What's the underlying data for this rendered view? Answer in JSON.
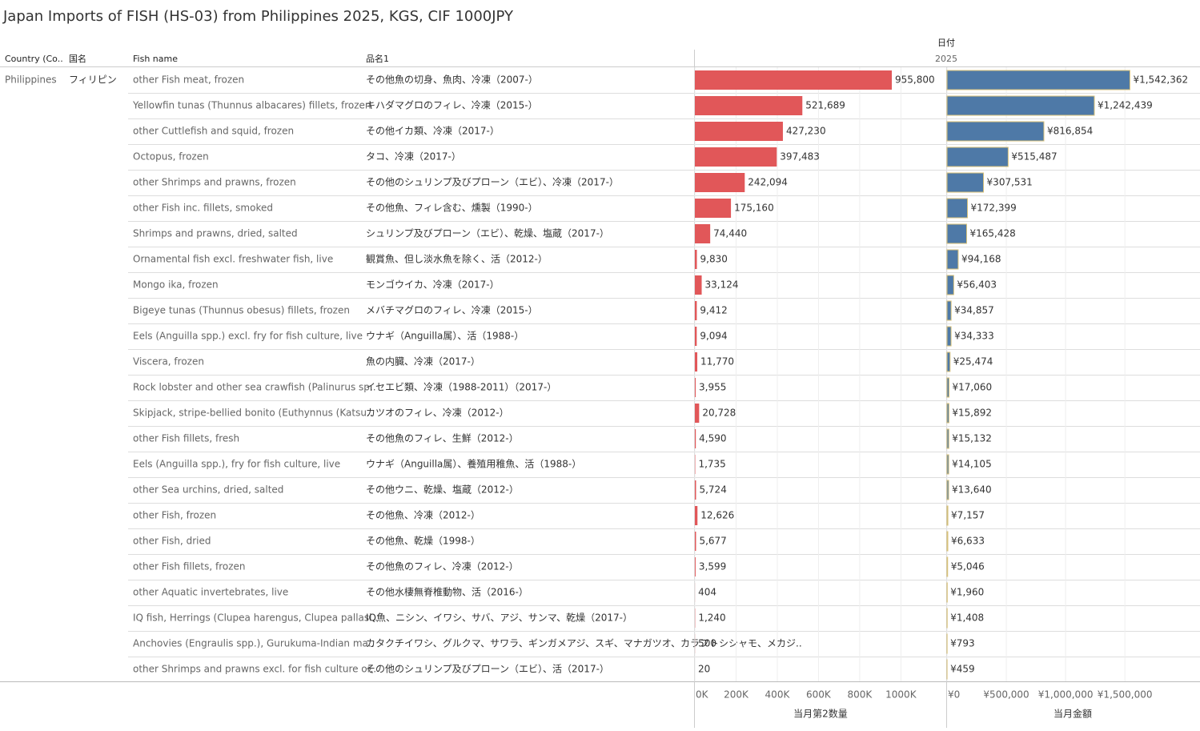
{
  "title": "Japan Imports of FISH (HS-03) from Philippines 2025, KGS, CIF 1000JPY",
  "headers": {
    "country": "Country (Co..",
    "country_ja": "国名",
    "fish_name": "Fish name",
    "name_ja": "品名1",
    "date": "日付",
    "year": "2025"
  },
  "country": "Philippines",
  "country_ja": "フィリピン",
  "rows": [
    {
      "fish_name": "other Fish meat, frozen",
      "name_ja": "その他魚の切身、魚肉、冷凍（2007-）"
    },
    {
      "fish_name": "Yellowfin tunas (Thunnus albacares) fillets, frozen",
      "name_ja": "キハダマグロのフィレ、冷凍（2015-）"
    },
    {
      "fish_name": "other Cuttlefish and squid, frozen",
      "name_ja": "その他イカ類、冷凍（2017-）"
    },
    {
      "fish_name": "Octopus, frozen",
      "name_ja": "タコ、冷凍（2017-）"
    },
    {
      "fish_name": "other Shrimps and prawns, frozen",
      "name_ja": "その他のシュリンプ及びプローン（エビ）、冷凍（2017-）"
    },
    {
      "fish_name": "other Fish inc. fillets, smoked",
      "name_ja": "その他魚、フィレ含む、燻製（1990-）"
    },
    {
      "fish_name": "Shrimps and prawns, dried, salted",
      "name_ja": "シュリンプ及びプローン（エビ）、乾燥、塩蔵（2017-）"
    },
    {
      "fish_name": "Ornamental fish excl. freshwater fish, live",
      "name_ja": "観賞魚、但し淡水魚を除く、活（2012-）"
    },
    {
      "fish_name": "Mongo ika, frozen",
      "name_ja": "モンゴウイカ、冷凍（2017-）"
    },
    {
      "fish_name": "Bigeye tunas (Thunnus obesus) fillets, frozen",
      "name_ja": "メバチマグロのフィレ、冷凍（2015-）"
    },
    {
      "fish_name": "Eels (Anguilla spp.) excl. fry for fish culture, live",
      "name_ja": "ウナギ（Anguilla属）、活（1988-）"
    },
    {
      "fish_name": "Viscera, frozen",
      "name_ja": "魚の内臓、冷凍（2017-）"
    },
    {
      "fish_name": "Rock lobster and other sea crawfish (Palinurus sp..",
      "name_ja": "イセエビ類、冷凍（1988-2011）（2017-）"
    },
    {
      "fish_name": "Skipjack, stripe-bellied bonito (Euthynnus (Katsu..",
      "name_ja": "カツオのフィレ、冷凍（2012-）"
    },
    {
      "fish_name": "other Fish fillets, fresh",
      "name_ja": "その他魚のフィレ、生鮮（2012-）"
    },
    {
      "fish_name": "Eels (Anguilla spp.), fry for fish culture, live",
      "name_ja": "ウナギ（Anguilla属）、養殖用稚魚、活（1988-）"
    },
    {
      "fish_name": "other Sea urchins, dried, salted",
      "name_ja": "その他ウニ、乾燥、塩蔵（2012-）"
    },
    {
      "fish_name": "other Fish, frozen",
      "name_ja": "その他魚、冷凍（2012-）"
    },
    {
      "fish_name": "other Fish, dried",
      "name_ja": "その他魚、乾燥（1998-）"
    },
    {
      "fish_name": "other Fish fillets, frozen",
      "name_ja": "その他魚のフィレ、冷凍（2012-）"
    },
    {
      "fish_name": "other Aquatic invertebrates, live",
      "name_ja": "その他水棲無脊椎動物、活（2016-）"
    },
    {
      "fish_name": "IQ fish, Herrings (Clupea harengus, Clupea pallasi..",
      "name_ja": "IQ魚、ニシン、イワシ、サバ、アジ、サンマ、乾燥（2017-）"
    },
    {
      "fish_name": "Anchovies (Engraulis spp.), Gurukuma-Indian ma..",
      "name_ja": "カタクチイワシ、グルクマ、サワラ、ギンガメアジ、スギ、マナガツオ、カラフトシシャモ、メカジ.."
    },
    {
      "fish_name": "other Shrimps and prawns excl. for fish culture or..",
      "name_ja": "その他のシュリンプ及びプローン（エビ）、活（2017-）"
    }
  ],
  "chart_data": [
    {
      "type": "bar",
      "x_label": "当月第2数量",
      "color": "#e15759",
      "values": [
        955800,
        521689,
        427230,
        397483,
        242094,
        175160,
        74440,
        9830,
        33124,
        9412,
        9094,
        11770,
        3955,
        20728,
        4590,
        1735,
        5724,
        12626,
        5677,
        3599,
        404,
        1240,
        500,
        20
      ],
      "value_labels": [
        "955,800",
        "521,689",
        "427,230",
        "397,483",
        "242,094",
        "175,160",
        "74,440",
        "9,830",
        "33,124",
        "9,412",
        "9,094",
        "11,770",
        "3,955",
        "20,728",
        "4,590",
        "1,735",
        "5,724",
        "12,626",
        "5,677",
        "3,599",
        "404",
        "1,240",
        "500",
        "20"
      ],
      "xlim": [
        0,
        1220000
      ],
      "xticks": [
        {
          "value": 0,
          "label": "0K"
        },
        {
          "value": 200000,
          "label": "200K"
        },
        {
          "value": 400000,
          "label": "400K"
        },
        {
          "value": 600000,
          "label": "600K"
        },
        {
          "value": 800000,
          "label": "800K"
        },
        {
          "value": 1000000,
          "label": "1000K"
        }
      ]
    },
    {
      "type": "bar",
      "x_label": "当月金額",
      "color": "#4e79a7",
      "border_color": "#d9c27a",
      "values": [
        1542362,
        1242439,
        816854,
        515487,
        307531,
        172399,
        165428,
        94168,
        56403,
        34857,
        34333,
        25474,
        17060,
        15892,
        15132,
        14105,
        13640,
        7157,
        6633,
        5046,
        1960,
        1408,
        793,
        459
      ],
      "value_labels": [
        "¥1,542,362",
        "¥1,242,439",
        "¥816,854",
        "¥515,487",
        "¥307,531",
        "¥172,399",
        "¥165,428",
        "¥94,168",
        "¥56,403",
        "¥34,857",
        "¥34,333",
        "¥25,474",
        "¥17,060",
        "¥15,892",
        "¥15,132",
        "¥14,105",
        "¥13,640",
        "¥7,157",
        "¥6,633",
        "¥5,046",
        "¥1,960",
        "¥1,408",
        "¥793",
        "¥459"
      ],
      "xlim": [
        0,
        2120000
      ],
      "xticks": [
        {
          "value": 0,
          "label": "¥0"
        },
        {
          "value": 500000,
          "label": "¥500,000"
        },
        {
          "value": 1000000,
          "label": "¥1,000,000"
        },
        {
          "value": 1500000,
          "label": "¥1,500,000"
        }
      ]
    }
  ]
}
